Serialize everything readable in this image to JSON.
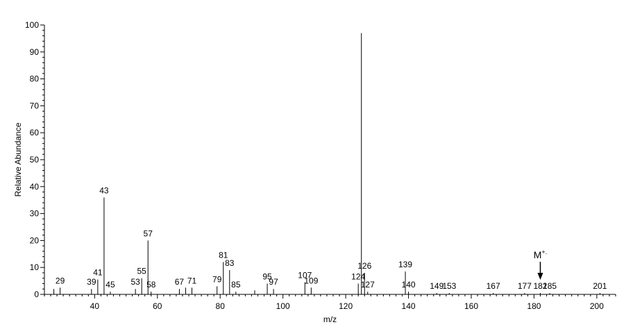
{
  "chart_data": {
    "type": "bar",
    "xlabel": "m/z",
    "ylabel": "Relative Abundance",
    "xlim": [
      24,
      206
    ],
    "ylim": [
      0,
      100
    ],
    "xticks": [
      40,
      60,
      80,
      100,
      120,
      140,
      160,
      180,
      200
    ],
    "yticks": [
      0,
      10,
      20,
      30,
      40,
      50,
      60,
      70,
      80,
      90,
      100
    ],
    "peaks": [
      {
        "mz": 27,
        "value": 2,
        "label": ""
      },
      {
        "mz": 29,
        "value": 2.5,
        "label": "29"
      },
      {
        "mz": 39,
        "value": 2,
        "label": "39"
      },
      {
        "mz": 41,
        "value": 5.5,
        "label": "41"
      },
      {
        "mz": 43,
        "value": 36,
        "label": "43"
      },
      {
        "mz": 45,
        "value": 1,
        "label": "45"
      },
      {
        "mz": 53,
        "value": 2,
        "label": "53"
      },
      {
        "mz": 55,
        "value": 6,
        "label": "55"
      },
      {
        "mz": 57,
        "value": 20,
        "label": "57"
      },
      {
        "mz": 58,
        "value": 1,
        "label": "58"
      },
      {
        "mz": 67,
        "value": 2,
        "label": "67"
      },
      {
        "mz": 69,
        "value": 2.5,
        "label": ""
      },
      {
        "mz": 71,
        "value": 2.5,
        "label": "71"
      },
      {
        "mz": 79,
        "value": 3,
        "label": "79"
      },
      {
        "mz": 81,
        "value": 12,
        "label": "81"
      },
      {
        "mz": 83,
        "value": 9,
        "label": "83"
      },
      {
        "mz": 85,
        "value": 1,
        "label": "85"
      },
      {
        "mz": 91,
        "value": 1.5,
        "label": ""
      },
      {
        "mz": 95,
        "value": 4,
        "label": "95"
      },
      {
        "mz": 97,
        "value": 2,
        "label": "97"
      },
      {
        "mz": 107,
        "value": 4.5,
        "label": "107"
      },
      {
        "mz": 109,
        "value": 2.5,
        "label": "109"
      },
      {
        "mz": 124,
        "value": 4,
        "label": "124"
      },
      {
        "mz": 125,
        "value": 97,
        "label": ""
      },
      {
        "mz": 126,
        "value": 8,
        "label": "126"
      },
      {
        "mz": 127,
        "value": 1,
        "label": "127"
      },
      {
        "mz": 139,
        "value": 8.5,
        "label": "139"
      },
      {
        "mz": 140,
        "value": 1,
        "label": "140"
      },
      {
        "mz": 149,
        "value": 0.5,
        "label": "149"
      },
      {
        "mz": 153,
        "value": 0.5,
        "label": "153"
      },
      {
        "mz": 167,
        "value": 0.5,
        "label": "167"
      },
      {
        "mz": 177,
        "value": 0.5,
        "label": "177"
      },
      {
        "mz": 182,
        "value": 0.5,
        "label": "182"
      },
      {
        "mz": 185,
        "value": 0.5,
        "label": "185"
      },
      {
        "mz": 201,
        "value": 0.5,
        "label": "201"
      }
    ],
    "annotation": {
      "text": "M",
      "superscript": "+.",
      "mz": 182
    }
  }
}
